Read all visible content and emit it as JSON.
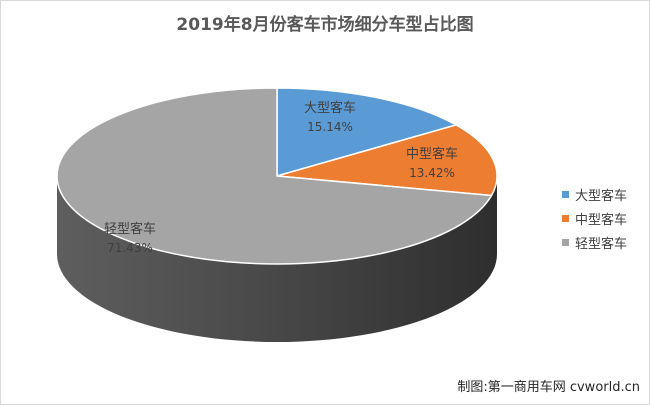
{
  "title": "2019年8月份客车市场细分车型占比图",
  "watermark": "制图:第一商用车网 cvworld.cn",
  "chart_data": {
    "type": "pie",
    "title": "2019年8月份客车市场细分车型占比图",
    "categories": [
      "大型客车",
      "中型客车",
      "轻型客车"
    ],
    "values": [
      15.14,
      13.42,
      71.43
    ],
    "labels": [
      "15.14%",
      "13.42%",
      "71.43%"
    ],
    "colors": [
      "#5b9bd5",
      "#ed7d31",
      "#a5a5a5"
    ],
    "style": "3d",
    "legend": "right"
  }
}
